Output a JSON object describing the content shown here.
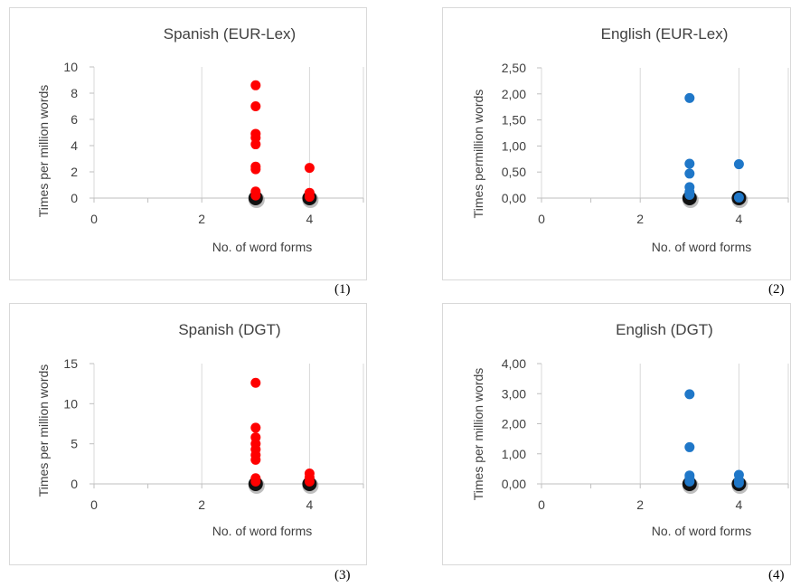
{
  "chart_data": [
    {
      "type": "scatter",
      "title": "Spanish (EUR-Lex)",
      "xlabel": "No. of word forms",
      "ylabel": "Times per million words",
      "caption": "(1)",
      "xlim": [
        0,
        5
      ],
      "ylim": [
        0,
        10
      ],
      "x_ticks": [
        "0",
        "2",
        "4"
      ],
      "y_ticks": [
        "0",
        "2",
        "4",
        "6",
        "8",
        "10"
      ],
      "y_tick_values": [
        0,
        2,
        4,
        6,
        8,
        10
      ],
      "grid": "vertical",
      "color": "#ff0000",
      "points": [
        {
          "x": 3,
          "y": 8.6
        },
        {
          "x": 3,
          "y": 7.0
        },
        {
          "x": 3,
          "y": 4.9
        },
        {
          "x": 3,
          "y": 4.6
        },
        {
          "x": 3,
          "y": 4.1
        },
        {
          "x": 3,
          "y": 2.4
        },
        {
          "x": 3,
          "y": 2.2
        },
        {
          "x": 3,
          "y": 0.5
        },
        {
          "x": 3,
          "y": 0.2
        },
        {
          "x": 4,
          "y": 2.3
        },
        {
          "x": 4,
          "y": 0.4
        },
        {
          "x": 4,
          "y": 0.1
        }
      ],
      "zero_points": [
        {
          "x": 3,
          "y": 0
        },
        {
          "x": 4,
          "y": 0
        }
      ]
    },
    {
      "type": "scatter",
      "title": "English (EUR-Lex)",
      "xlabel": "No. of word forms",
      "ylabel": "Times permillion words",
      "caption": "(2)",
      "xlim": [
        0,
        5
      ],
      "ylim": [
        0,
        2.5
      ],
      "x_ticks": [
        "0",
        "2",
        "4"
      ],
      "y_ticks": [
        "0,00",
        "0,50",
        "1,00",
        "1,50",
        "2,00",
        "2,50"
      ],
      "y_tick_values": [
        0,
        0.5,
        1.0,
        1.5,
        2.0,
        2.5
      ],
      "grid": "vertical",
      "color": "#1f77c8",
      "points": [
        {
          "x": 3,
          "y": 1.92
        },
        {
          "x": 3,
          "y": 0.66
        },
        {
          "x": 3,
          "y": 0.47
        },
        {
          "x": 3,
          "y": 0.21
        },
        {
          "x": 3,
          "y": 0.12
        },
        {
          "x": 3,
          "y": 0.06
        },
        {
          "x": 4,
          "y": 0.65
        },
        {
          "x": 4,
          "y": 0.01
        }
      ],
      "zero_points": [
        {
          "x": 3,
          "y": 0
        },
        {
          "x": 4,
          "y": 0
        }
      ]
    },
    {
      "type": "scatter",
      "title": "Spanish (DGT)",
      "xlabel": "No. of word forms",
      "ylabel": "Times per million words",
      "caption": "(3)",
      "xlim": [
        0,
        5
      ],
      "ylim": [
        0,
        15
      ],
      "x_ticks": [
        "0",
        "2",
        "4"
      ],
      "y_ticks": [
        "0",
        "5",
        "10",
        "15"
      ],
      "y_tick_values": [
        0,
        5,
        10,
        15
      ],
      "grid": "vertical",
      "color": "#ff0000",
      "points": [
        {
          "x": 3,
          "y": 12.6
        },
        {
          "x": 3,
          "y": 7.0
        },
        {
          "x": 3,
          "y": 5.8
        },
        {
          "x": 3,
          "y": 5.0
        },
        {
          "x": 3,
          "y": 4.3
        },
        {
          "x": 3,
          "y": 3.6
        },
        {
          "x": 3,
          "y": 3.0
        },
        {
          "x": 3,
          "y": 0.7
        },
        {
          "x": 3,
          "y": 0.3
        },
        {
          "x": 4,
          "y": 1.3
        },
        {
          "x": 4,
          "y": 0.8
        },
        {
          "x": 4,
          "y": 0.3
        }
      ],
      "zero_points": [
        {
          "x": 3,
          "y": 0
        },
        {
          "x": 4,
          "y": 0
        }
      ]
    },
    {
      "type": "scatter",
      "title": "English (DGT)",
      "xlabel": "No. of word forms",
      "ylabel": "Times per million words",
      "caption": "(4)",
      "xlim": [
        0,
        5
      ],
      "ylim": [
        0,
        4
      ],
      "x_ticks": [
        "0",
        "2",
        "4"
      ],
      "y_ticks": [
        "0,00",
        "1,00",
        "2,00",
        "3,00",
        "4,00"
      ],
      "y_tick_values": [
        0,
        1,
        2,
        3,
        4
      ],
      "grid": "vertical",
      "color": "#1f77c8",
      "points": [
        {
          "x": 3,
          "y": 2.98
        },
        {
          "x": 3,
          "y": 1.22
        },
        {
          "x": 3,
          "y": 0.28
        },
        {
          "x": 3,
          "y": 0.18
        },
        {
          "x": 3,
          "y": 0.08
        },
        {
          "x": 4,
          "y": 0.3
        },
        {
          "x": 4,
          "y": 0.12
        },
        {
          "x": 4,
          "y": 0.03
        }
      ],
      "zero_points": [
        {
          "x": 3,
          "y": 0
        },
        {
          "x": 4,
          "y": 0
        }
      ]
    }
  ]
}
